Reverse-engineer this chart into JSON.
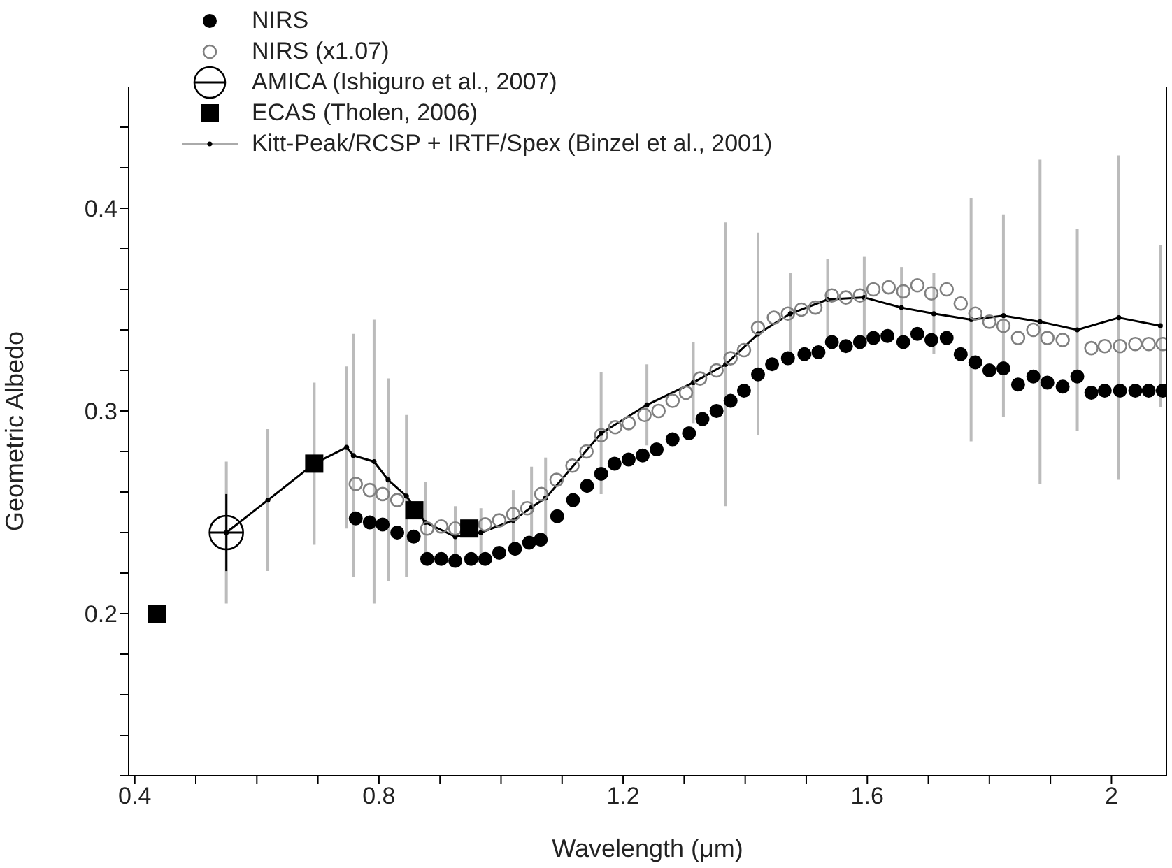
{
  "chart_data": {
    "type": "scatter",
    "xlabel": "Wavelength (μm)",
    "ylabel": "Geometric Albedo",
    "legend": "top left",
    "xlim": [
      0.39,
      2.09
    ],
    "ylim": [
      0.12,
      0.46
    ],
    "xticks": [
      0.4,
      {
        "value": 0.5,
        "label": null
      },
      {
        "value": 0.6,
        "label": null
      },
      {
        "value": 0.7,
        "label": null
      },
      0.8,
      {
        "value": 0.9,
        "label": null
      },
      {
        "value": 1.0,
        "label": null
      },
      {
        "value": 1.1,
        "label": null
      },
      1.2,
      {
        "value": 1.3,
        "label": null
      },
      {
        "value": 1.4,
        "label": null
      },
      {
        "value": 1.5,
        "label": null
      },
      1.6,
      {
        "value": 1.7,
        "label": null
      },
      {
        "value": 1.8,
        "label": null
      },
      {
        "value": 1.9,
        "label": null
      },
      2.0
    ],
    "yticks": [
      {
        "value": 0.12,
        "label": null
      },
      {
        "value": 0.14,
        "label": null
      },
      {
        "value": 0.16,
        "label": null
      },
      {
        "value": 0.18,
        "label": null
      },
      0.2,
      {
        "value": 0.22,
        "label": null
      },
      {
        "value": 0.24,
        "label": null
      },
      {
        "value": 0.26,
        "label": null
      },
      {
        "value": 0.28,
        "label": null
      },
      0.3,
      {
        "value": 0.32,
        "label": null
      },
      {
        "value": 0.34,
        "label": null
      },
      {
        "value": 0.36,
        "label": null
      },
      {
        "value": 0.38,
        "label": null
      },
      0.4,
      {
        "value": 0.42,
        "label": null
      },
      {
        "value": 0.44,
        "label": null
      }
    ],
    "series": [
      {
        "name": "NIRS",
        "marker": "circle",
        "color": "#000000",
        "x": [
          0.762,
          0.785,
          0.806,
          0.83,
          0.857,
          0.879,
          0.902,
          0.925,
          0.951,
          0.974,
          0.997,
          1.023,
          1.046,
          1.065,
          1.092,
          1.118,
          1.141,
          1.164,
          1.186,
          1.209,
          1.232,
          1.255,
          1.281,
          1.308,
          1.33,
          1.353,
          1.376,
          1.398,
          1.421,
          1.444,
          1.47,
          1.497,
          1.52,
          1.542,
          1.565,
          1.588,
          1.61,
          1.633,
          1.659,
          1.682,
          1.705,
          1.73,
          1.753,
          1.777,
          1.8,
          1.823,
          1.847,
          1.872,
          1.895,
          1.92,
          1.944,
          1.967,
          1.989,
          2.014,
          2.039,
          2.061,
          2.084
        ],
        "values": [
          0.247,
          0.245,
          0.244,
          0.24,
          0.238,
          0.227,
          0.227,
          0.226,
          0.227,
          0.227,
          0.23,
          0.232,
          0.235,
          0.2365,
          0.248,
          0.256,
          0.263,
          0.269,
          0.274,
          0.276,
          0.278,
          0.281,
          0.286,
          0.289,
          0.296,
          0.3,
          0.305,
          0.31,
          0.318,
          0.323,
          0.326,
          0.328,
          0.329,
          0.334,
          0.332,
          0.334,
          0.336,
          0.337,
          0.334,
          0.338,
          0.335,
          0.336,
          0.328,
          0.324,
          0.32,
          0.321,
          0.313,
          0.317,
          0.314,
          0.312,
          0.317,
          0.309,
          0.31,
          0.31,
          0.31,
          0.31,
          0.31
        ]
      },
      {
        "name": "NIRS (x1.07)",
        "marker": "circle",
        "color": "#808080",
        "x": [
          0.762,
          0.785,
          0.806,
          0.83,
          0.879,
          0.902,
          0.925,
          0.974,
          0.997,
          1.02,
          1.043,
          1.066,
          1.091,
          1.117,
          1.14,
          1.164,
          1.187,
          1.209,
          1.235,
          1.258,
          1.281,
          1.303,
          1.326,
          1.353,
          1.376,
          1.398,
          1.421,
          1.447,
          1.47,
          1.492,
          1.515,
          1.542,
          1.565,
          1.588,
          1.61,
          1.635,
          1.659,
          1.682,
          1.705,
          1.73,
          1.753,
          1.777,
          1.8,
          1.823,
          1.847,
          1.872,
          1.895,
          1.92,
          1.967,
          1.989,
          2.014,
          2.039,
          2.061,
          2.084
        ],
        "values": [
          0.264,
          0.261,
          0.259,
          0.256,
          0.242,
          0.243,
          0.242,
          0.244,
          0.246,
          0.249,
          0.252,
          0.259,
          0.266,
          0.273,
          0.28,
          0.288,
          0.292,
          0.294,
          0.298,
          0.3,
          0.305,
          0.309,
          0.316,
          0.32,
          0.326,
          0.33,
          0.341,
          0.346,
          0.348,
          0.35,
          0.351,
          0.357,
          0.356,
          0.357,
          0.36,
          0.361,
          0.359,
          0.362,
          0.358,
          0.36,
          0.353,
          0.348,
          0.344,
          0.342,
          0.336,
          0.34,
          0.336,
          0.335,
          0.331,
          0.332,
          0.332,
          0.333,
          0.333,
          0.333
        ]
      },
      {
        "name": "AMICA (Ishiguro et al., 2007)",
        "marker": "circle",
        "color": "#000000",
        "x": [
          0.55
        ],
        "values": [
          0.24
        ],
        "errors": [
          0.019
        ],
        "xerrors": [
          0.027
        ]
      },
      {
        "name": "ECAS (Tholen, 2006)",
        "marker": "square",
        "color": "#000000",
        "x": [
          0.436,
          0.694,
          0.858,
          0.948
        ],
        "values": [
          0.2,
          0.274,
          0.251,
          0.242
        ]
      },
      {
        "name": "Kitt-Peak/RCSP + IRTF/Spex (Binzel et al., 2001)",
        "type": "line",
        "marker": "circle",
        "line_style": "solid",
        "color": "#000000",
        "x": [
          0.55,
          0.618,
          0.694,
          0.747,
          0.758,
          0.792,
          0.815,
          0.845,
          0.876,
          0.925,
          0.967,
          1.02,
          1.05,
          1.073,
          1.164,
          1.239,
          1.315,
          1.368,
          1.421,
          1.474,
          1.535,
          1.595,
          1.656,
          1.709,
          1.77,
          1.823,
          1.883,
          1.944,
          2.012,
          2.08
        ],
        "values": [
          0.24,
          0.256,
          0.274,
          0.282,
          0.278,
          0.275,
          0.266,
          0.258,
          0.245,
          0.238,
          0.24,
          0.246,
          0.2525,
          0.257,
          0.289,
          0.303,
          0.314,
          0.323,
          0.338,
          0.348,
          0.355,
          0.356,
          0.351,
          0.348,
          0.345,
          0.347,
          0.344,
          0.34,
          0.346,
          0.342
        ],
        "errors": [
          0.035,
          0.035,
          0.04,
          0.04,
          0.06,
          0.07,
          0.05,
          0.04,
          0.02,
          0.015,
          0.012,
          0.015,
          0.02,
          0.02,
          0.03,
          0.02,
          0.02,
          0.07,
          0.05,
          0.02,
          0.02,
          0.02,
          0.02,
          0.02,
          0.06,
          0.05,
          0.08,
          0.05,
          0.08,
          0.04
        ]
      }
    ]
  }
}
